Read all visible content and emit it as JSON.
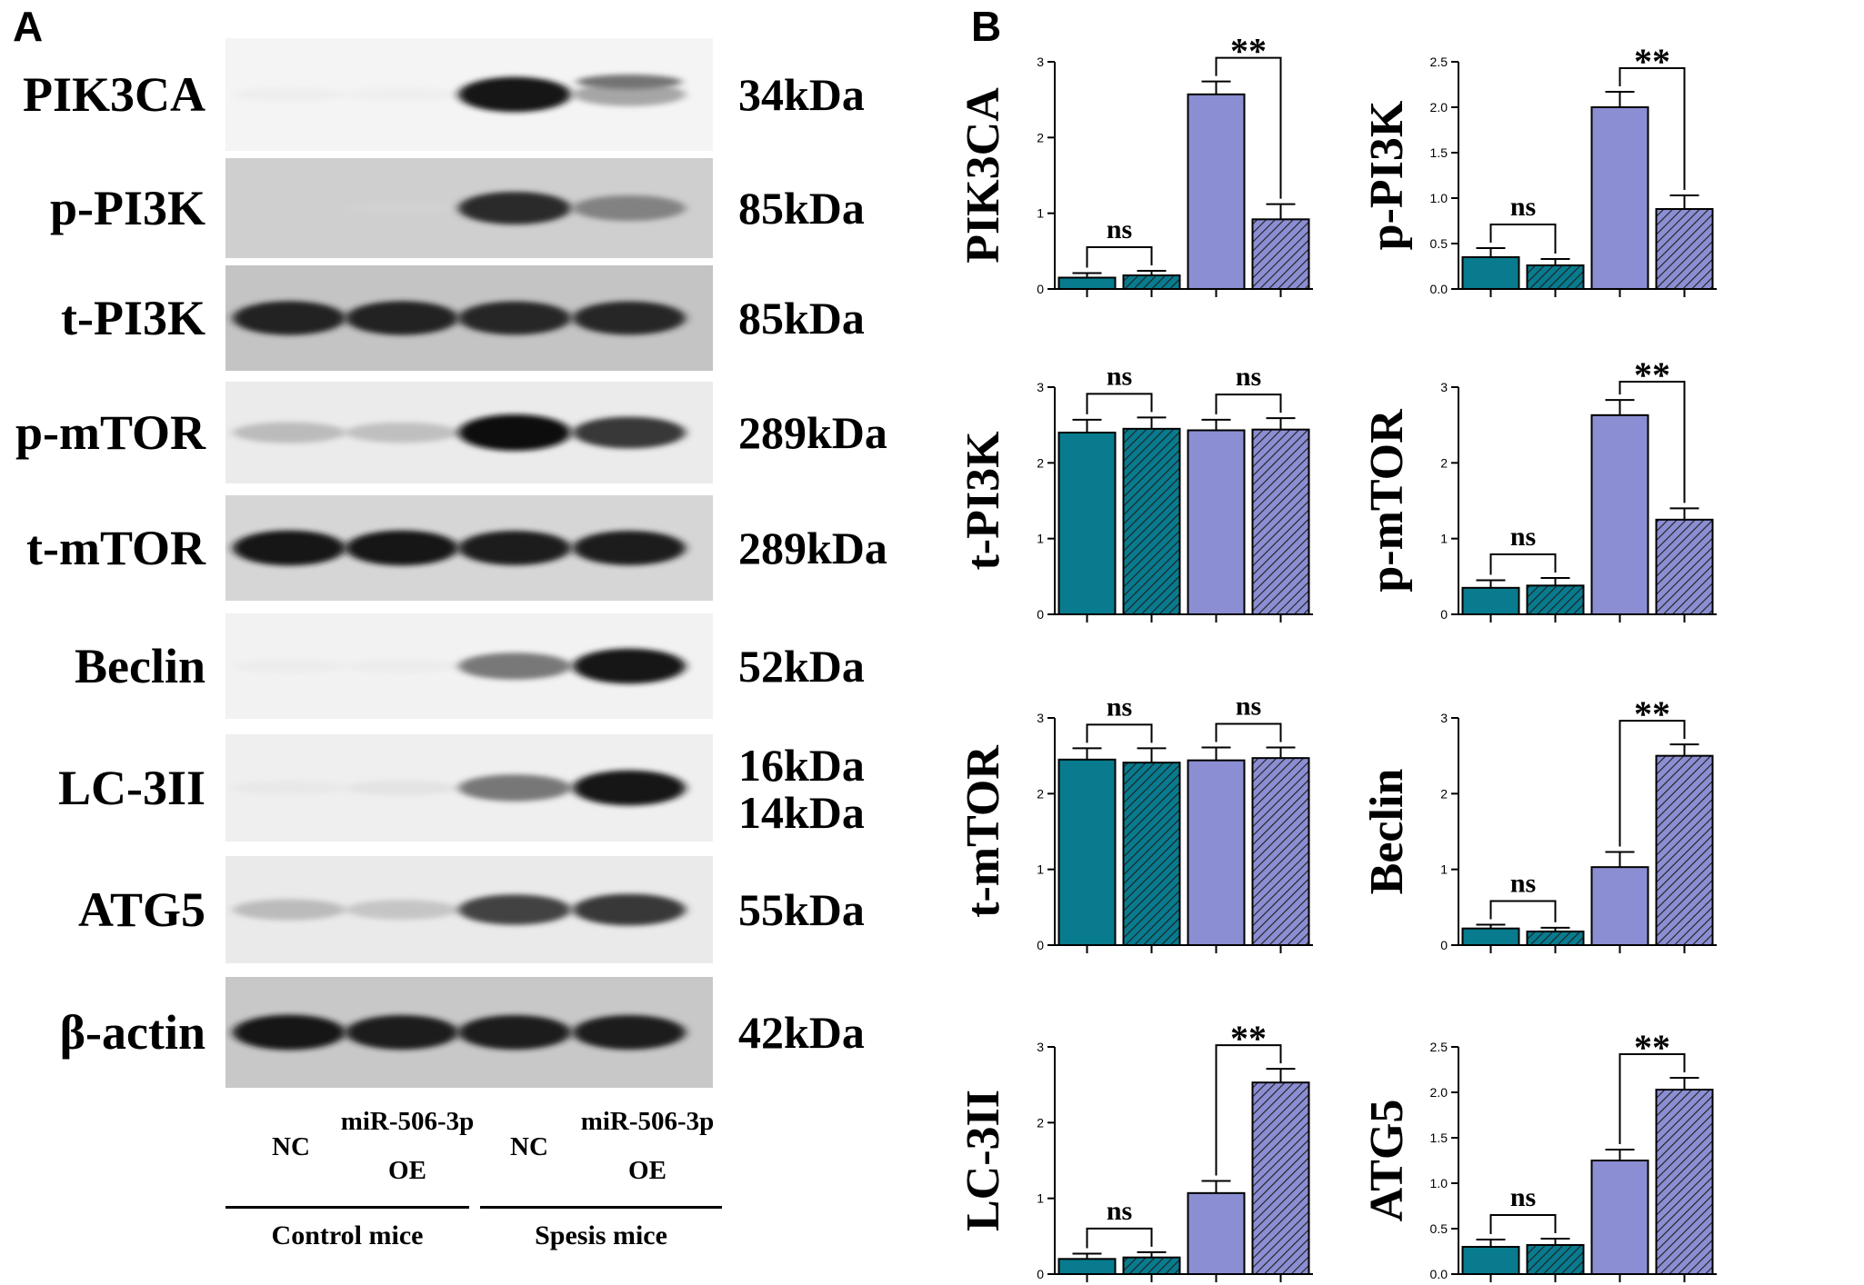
{
  "panel_a": {
    "letter": "A",
    "rows": [
      {
        "label": "PIK3CA",
        "kda": "34kDa",
        "bands": [
          0.05,
          0.04,
          0.95,
          0.45
        ],
        "bg": "#f4f4f4",
        "secondary": [
          0,
          0,
          0,
          0.6
        ]
      },
      {
        "label": "p-PI3K",
        "kda": "85kDa",
        "bands": [
          0.12,
          0.1,
          0.85,
          0.55
        ],
        "bg": "#cfcfcf"
      },
      {
        "label": "t-PI3K",
        "kda": "85kDa",
        "bands": [
          0.9,
          0.9,
          0.88,
          0.88
        ],
        "bg": "#c4c4c4"
      },
      {
        "label": "p-mTOR",
        "kda": "289kDa",
        "bands": [
          0.35,
          0.33,
          1.0,
          0.8
        ],
        "bg": "#ebebeb"
      },
      {
        "label": "t-mTOR",
        "kda": "289kDa",
        "bands": [
          0.95,
          0.95,
          0.92,
          0.92
        ],
        "bg": "#d6d6d6"
      },
      {
        "label": "Beclin",
        "kda": "52kDa",
        "bands": [
          0.05,
          0.05,
          0.6,
          0.95
        ],
        "bg": "#f2f2f2"
      },
      {
        "label": "LC-3II",
        "kda1": "16kDa",
        "kda2": "14kDa",
        "bands": [
          0.07,
          0.12,
          0.6,
          0.95
        ],
        "bg": "#efefef"
      },
      {
        "label": "ATG5",
        "kda": "55kDa",
        "bands": [
          0.35,
          0.3,
          0.75,
          0.8
        ],
        "bg": "#eaeaea"
      },
      {
        "label": "β-actin",
        "kda": "42kDa",
        "bands": [
          0.95,
          0.92,
          0.92,
          0.92
        ],
        "bg": "#c8c8c8"
      }
    ],
    "lanes": [
      {
        "line1": "",
        "line2": "NC"
      },
      {
        "line1": "miR-506-3p",
        "line2": "OE"
      },
      {
        "line1": "",
        "line2": "NC"
      },
      {
        "line1": "miR-506-3p",
        "line2": "OE"
      }
    ],
    "groups": [
      "Control mice",
      "Spesis mice"
    ]
  },
  "panel_b": {
    "letter": "B"
  },
  "colors": {
    "control": "#087b8e",
    "sepsis": "#8b8ed2",
    "hatch_line": "#1e1e1e",
    "axis": "#000000"
  },
  "chart_data": [
    {
      "type": "bar",
      "ylabel": "PIK3CA",
      "ylim": [
        0,
        3
      ],
      "yticks": [
        "0",
        "1",
        "2",
        "3"
      ],
      "tickvals": [
        0,
        1,
        2,
        3
      ],
      "values": [
        0.15,
        0.18,
        2.57,
        0.92
      ],
      "errors": [
        0.06,
        0.06,
        0.17,
        0.2
      ],
      "comparisons": [
        {
          "pair": [
            0,
            1
          ],
          "label": "ns"
        },
        {
          "pair": [
            2,
            3
          ],
          "label": "**"
        }
      ]
    },
    {
      "type": "bar",
      "ylabel": "p-PI3K",
      "ylim": [
        0,
        2.5
      ],
      "yticks": [
        "0.0",
        "0.5",
        "1.0",
        "1.5",
        "2.0",
        "2.5"
      ],
      "tickvals": [
        0,
        0.5,
        1,
        1.5,
        2,
        2.5
      ],
      "values": [
        0.35,
        0.26,
        2.0,
        0.88
      ],
      "errors": [
        0.1,
        0.07,
        0.17,
        0.15
      ],
      "comparisons": [
        {
          "pair": [
            0,
            1
          ],
          "label": "ns"
        },
        {
          "pair": [
            2,
            3
          ],
          "label": "**"
        }
      ]
    },
    {
      "type": "bar",
      "ylabel": "t-PI3K",
      "ylim": [
        0,
        3
      ],
      "yticks": [
        "0",
        "1",
        "2",
        "3"
      ],
      "tickvals": [
        0,
        1,
        2,
        3
      ],
      "values": [
        2.4,
        2.45,
        2.43,
        2.44
      ],
      "errors": [
        0.17,
        0.15,
        0.14,
        0.15
      ],
      "comparisons": [
        {
          "pair": [
            0,
            1
          ],
          "label": "ns"
        },
        {
          "pair": [
            2,
            3
          ],
          "label": "ns"
        }
      ]
    },
    {
      "type": "bar",
      "ylabel": "p-mTOR",
      "ylim": [
        0,
        3
      ],
      "yticks": [
        "0",
        "1",
        "2",
        "3"
      ],
      "tickvals": [
        0,
        1,
        2,
        3
      ],
      "values": [
        0.35,
        0.38,
        2.63,
        1.25
      ],
      "errors": [
        0.1,
        0.1,
        0.2,
        0.15
      ],
      "comparisons": [
        {
          "pair": [
            0,
            1
          ],
          "label": "ns"
        },
        {
          "pair": [
            2,
            3
          ],
          "label": "**"
        }
      ]
    },
    {
      "type": "bar",
      "ylabel": "t-mTOR",
      "ylim": [
        0,
        3
      ],
      "yticks": [
        "0",
        "1",
        "2",
        "3"
      ],
      "tickvals": [
        0,
        1,
        2,
        3
      ],
      "values": [
        2.45,
        2.41,
        2.44,
        2.47
      ],
      "errors": [
        0.15,
        0.19,
        0.17,
        0.14
      ],
      "comparisons": [
        {
          "pair": [
            0,
            1
          ],
          "label": "ns"
        },
        {
          "pair": [
            2,
            3
          ],
          "label": "ns"
        }
      ]
    },
    {
      "type": "bar",
      "ylabel": "Beclin",
      "ylim": [
        0,
        3
      ],
      "yticks": [
        "0",
        "1",
        "2",
        "3"
      ],
      "tickvals": [
        0,
        1,
        2,
        3
      ],
      "values": [
        0.22,
        0.18,
        1.03,
        2.5
      ],
      "errors": [
        0.05,
        0.05,
        0.2,
        0.15
      ],
      "comparisons": [
        {
          "pair": [
            0,
            1
          ],
          "label": "ns"
        },
        {
          "pair": [
            2,
            3
          ],
          "label": "**"
        }
      ]
    },
    {
      "type": "bar",
      "ylabel": "LC-3II",
      "ylim": [
        0,
        3
      ],
      "yticks": [
        "0",
        "1",
        "2",
        "3"
      ],
      "tickvals": [
        0,
        1,
        2,
        3
      ],
      "values": [
        0.2,
        0.22,
        1.07,
        2.53
      ],
      "errors": [
        0.07,
        0.07,
        0.16,
        0.18
      ],
      "comparisons": [
        {
          "pair": [
            0,
            1
          ],
          "label": "ns"
        },
        {
          "pair": [
            2,
            3
          ],
          "label": "**"
        }
      ]
    },
    {
      "type": "bar",
      "ylabel": "ATG5",
      "ylim": [
        0,
        2.5
      ],
      "yticks": [
        "0.0",
        "0.5",
        "1.0",
        "1.5",
        "2.0",
        "2.5"
      ],
      "tickvals": [
        0,
        0.5,
        1,
        1.5,
        2,
        2.5
      ],
      "values": [
        0.3,
        0.32,
        1.25,
        2.03
      ],
      "errors": [
        0.08,
        0.07,
        0.12,
        0.13
      ],
      "comparisons": [
        {
          "pair": [
            0,
            1
          ],
          "label": "ns"
        },
        {
          "pair": [
            2,
            3
          ],
          "label": "**"
        }
      ]
    }
  ]
}
